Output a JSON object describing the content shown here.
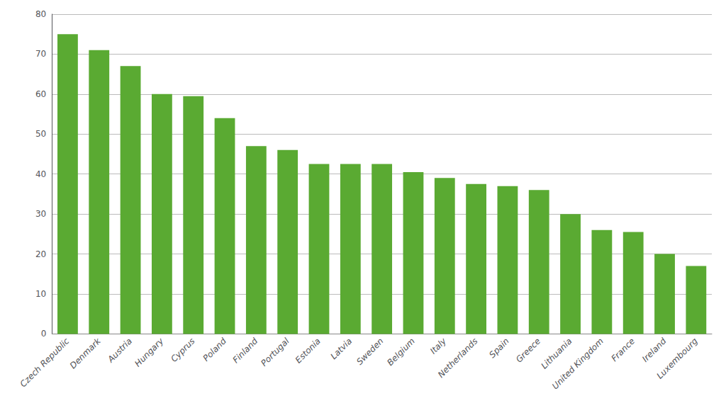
{
  "chart_data": {
    "type": "bar",
    "categories": [
      "Czech Republic",
      "Denmark",
      "Austria",
      "Hungary",
      "Cyprus",
      "Poland",
      "Finland",
      "Portugal",
      "Estonia",
      "Latvia",
      "Sweden",
      "Belgium",
      "Italy",
      "Netherlands",
      "Spain",
      "Greece",
      "Lithuania",
      "United Kingdom",
      "France",
      "Ireland",
      "Luxembourg"
    ],
    "values": [
      75,
      71,
      67,
      60,
      59.5,
      54,
      47,
      46,
      42.5,
      42.5,
      42.5,
      40.5,
      39,
      37.5,
      37,
      36,
      30,
      26,
      25.5,
      20,
      17
    ],
    "color": "#5aaa32",
    "ylim": [
      0,
      80
    ],
    "yticks": [
      0,
      10,
      20,
      30,
      40,
      50,
      60,
      70,
      80
    ],
    "grid": true
  }
}
